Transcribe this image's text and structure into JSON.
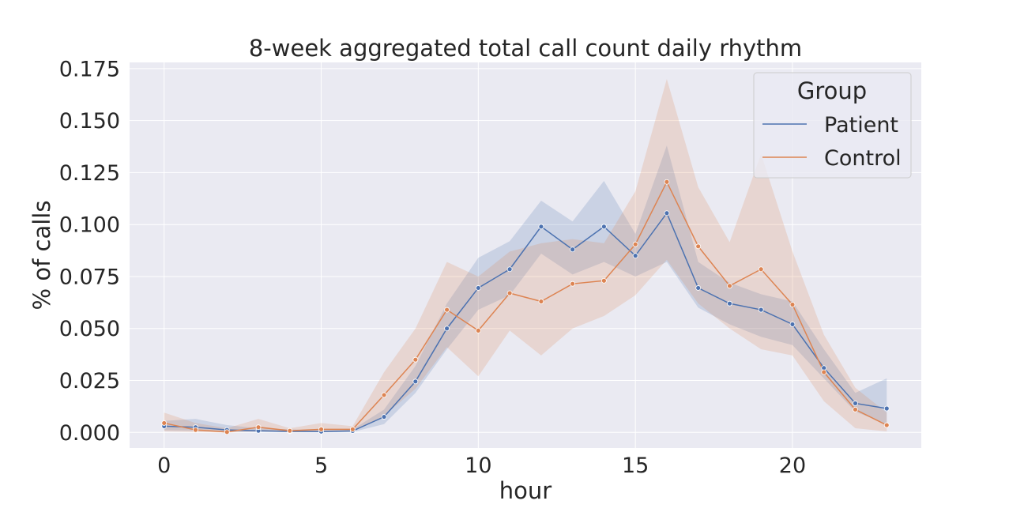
{
  "chart_data": {
    "type": "line",
    "title": "8-week aggregated total call count daily rhythm",
    "xlabel": "hour",
    "ylabel": "% of calls",
    "xlim": [
      -1.1,
      24.1
    ],
    "ylim": [
      -0.0075,
      0.178
    ],
    "xticks": [
      0,
      5,
      10,
      15,
      20
    ],
    "xtick_labels": [
      "0",
      "5",
      "10",
      "15",
      "20"
    ],
    "yticks": [
      0.0,
      0.025,
      0.05,
      0.075,
      0.1,
      0.125,
      0.15,
      0.175
    ],
    "ytick_labels": [
      "0.000",
      "0.025",
      "0.050",
      "0.075",
      "0.100",
      "0.125",
      "0.150",
      "0.175"
    ],
    "grid": true,
    "legend": {
      "title": "Group",
      "placement": "top-right"
    },
    "x": [
      0,
      1,
      2,
      3,
      4,
      5,
      6,
      7,
      8,
      9,
      10,
      11,
      12,
      13,
      14,
      15,
      16,
      17,
      18,
      19,
      20,
      21,
      22,
      23
    ],
    "series": [
      {
        "name": "Patient",
        "color": "#4c72b0",
        "values": [
          0.003,
          0.0025,
          0.0012,
          0.0008,
          0.0005,
          0.0004,
          0.0007,
          0.0075,
          0.0245,
          0.05,
          0.0695,
          0.0785,
          0.099,
          0.088,
          0.099,
          0.085,
          0.1055,
          0.0695,
          0.062,
          0.059,
          0.052,
          0.031,
          0.014,
          0.0115
        ],
        "ci_low": [
          0.001,
          0.0008,
          0.0003,
          0.0002,
          0.0001,
          0.0001,
          0.0002,
          0.004,
          0.019,
          0.04,
          0.059,
          0.066,
          0.086,
          0.076,
          0.082,
          0.075,
          0.082,
          0.06,
          0.052,
          0.046,
          0.042,
          0.026,
          0.01,
          0.004
        ],
        "ci_high": [
          0.0055,
          0.0065,
          0.0035,
          0.002,
          0.0015,
          0.001,
          0.0015,
          0.011,
          0.032,
          0.062,
          0.084,
          0.092,
          0.1115,
          0.1015,
          0.121,
          0.0955,
          0.138,
          0.082,
          0.072,
          0.0665,
          0.063,
          0.04,
          0.019,
          0.026
        ]
      },
      {
        "name": "Control",
        "color": "#dd8452",
        "values": [
          0.0045,
          0.0012,
          0.0002,
          0.0025,
          0.0008,
          0.0015,
          0.0015,
          0.018,
          0.035,
          0.059,
          0.049,
          0.067,
          0.063,
          0.0715,
          0.073,
          0.0905,
          0.1205,
          0.0895,
          0.0705,
          0.0785,
          0.0615,
          0.029,
          0.011,
          0.0035
        ],
        "ci_low": [
          0.0005,
          0.0002,
          0.0,
          0.0005,
          0.0001,
          0.0003,
          0.0004,
          0.008,
          0.021,
          0.041,
          0.027,
          0.049,
          0.037,
          0.05,
          0.056,
          0.066,
          0.083,
          0.062,
          0.05,
          0.04,
          0.037,
          0.015,
          0.002,
          0.0005
        ],
        "ci_high": [
          0.0095,
          0.0045,
          0.002,
          0.0065,
          0.002,
          0.0045,
          0.003,
          0.029,
          0.05,
          0.082,
          0.075,
          0.087,
          0.091,
          0.093,
          0.091,
          0.116,
          0.17,
          0.118,
          0.0915,
          0.134,
          0.087,
          0.047,
          0.0215,
          0.0095
        ]
      }
    ]
  },
  "colors": {
    "plot_background": "#eaeaf2",
    "grid": "#ffffff",
    "text": "#262626"
  }
}
